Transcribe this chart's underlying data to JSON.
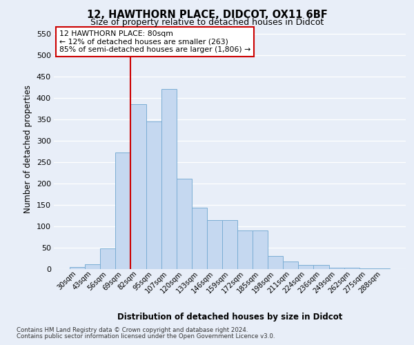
{
  "title1": "12, HAWTHORN PLACE, DIDCOT, OX11 6BF",
  "title2": "Size of property relative to detached houses in Didcot",
  "xlabel": "Distribution of detached houses by size in Didcot",
  "ylabel": "Number of detached properties",
  "categories": [
    "30sqm",
    "43sqm",
    "56sqm",
    "69sqm",
    "82sqm",
    "95sqm",
    "107sqm",
    "120sqm",
    "133sqm",
    "146sqm",
    "159sqm",
    "172sqm",
    "185sqm",
    "198sqm",
    "211sqm",
    "224sqm",
    "236sqm",
    "249sqm",
    "262sqm",
    "275sqm",
    "288sqm"
  ],
  "values": [
    5,
    11,
    49,
    272,
    385,
    345,
    420,
    211,
    143,
    115,
    115,
    90,
    90,
    30,
    18,
    10,
    10,
    4,
    4,
    1,
    2
  ],
  "bar_color": "#c5d8f0",
  "bar_edge_color": "#7aadd4",
  "vline_color": "#cc0000",
  "annotation_text": "12 HAWTHORN PLACE: 80sqm\n← 12% of detached houses are smaller (263)\n85% of semi-detached houses are larger (1,806) →",
  "footer1": "Contains HM Land Registry data © Crown copyright and database right 2024.",
  "footer2": "Contains public sector information licensed under the Open Government Licence v3.0.",
  "ylim": [
    0,
    560
  ],
  "yticks": [
    0,
    50,
    100,
    150,
    200,
    250,
    300,
    350,
    400,
    450,
    500,
    550
  ],
  "bg_color": "#e8eef8",
  "fig_color": "#e8eef8",
  "vline_index": 3.5
}
